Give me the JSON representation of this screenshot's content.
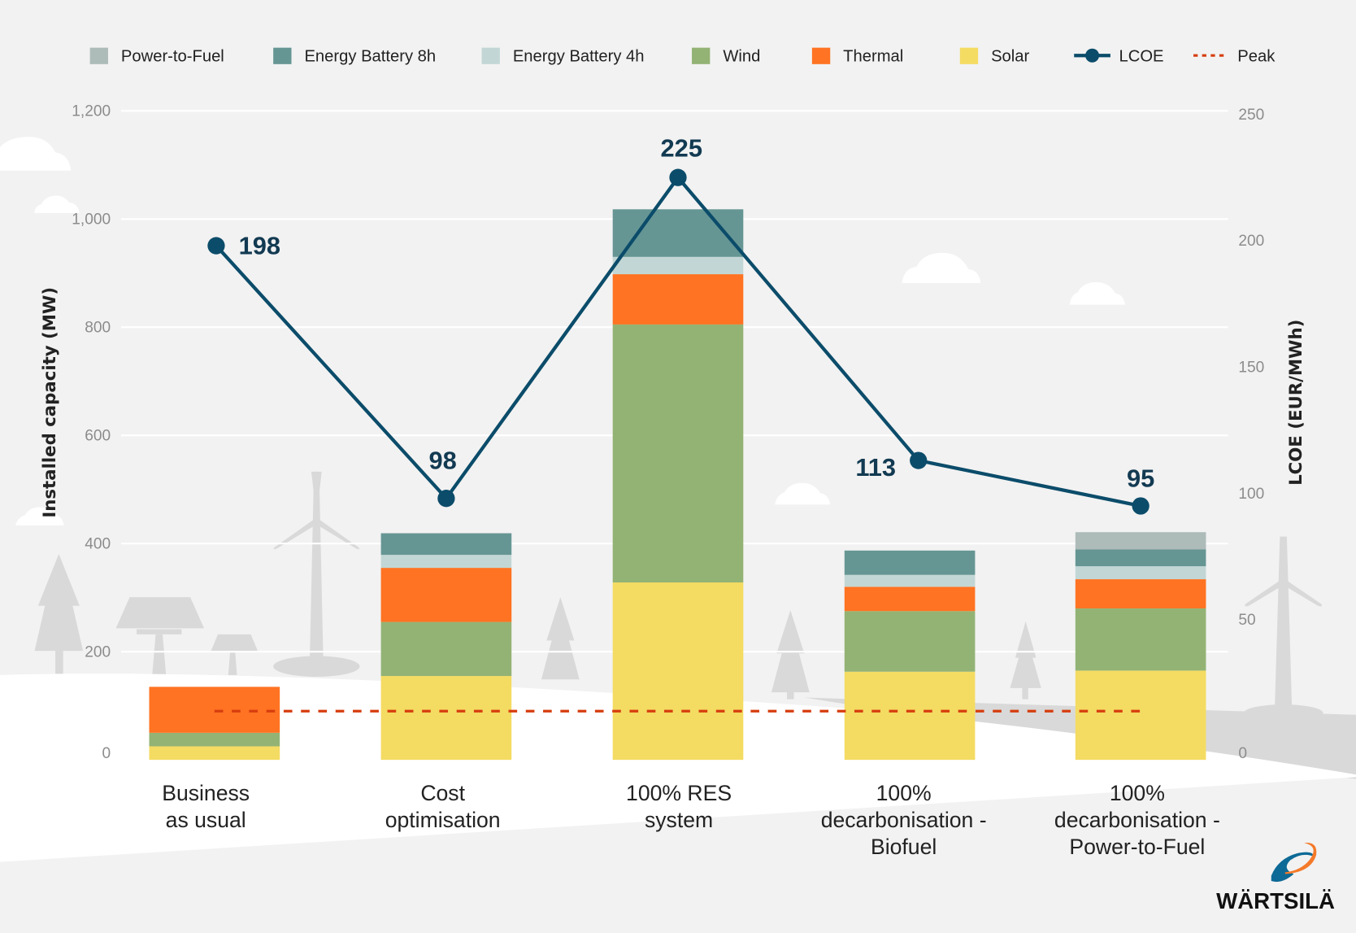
{
  "chart_data": {
    "type": "bar",
    "subtype": "stacked bar with line on secondary axis",
    "categories": [
      [
        "Business",
        "as usual"
      ],
      [
        "Cost",
        "optimisation"
      ],
      [
        "100% RES",
        "system"
      ],
      [
        "100%",
        "decarbonisation -",
        "Biofuel"
      ],
      [
        "100%",
        "decarbonisation -",
        "Power-to-Fuel"
      ]
    ],
    "ylabel": "Installed capacity (MW)",
    "ylim": [
      0,
      1200
    ],
    "yticks": [
      "0",
      "200",
      "400",
      "600",
      "800",
      "1,000",
      "1,200"
    ],
    "ytick_values": [
      0,
      200,
      400,
      600,
      800,
      1000,
      1200
    ],
    "y2label": "LCOE (EUR/MWh)",
    "y2lim": [
      0,
      250
    ],
    "y2ticks": [
      "0",
      "50",
      "100",
      "150",
      "200",
      "250"
    ],
    "y2tick_values": [
      0,
      50,
      100,
      150,
      200,
      250
    ],
    "grid": true,
    "legend_position": "top",
    "series": [
      {
        "name": "Solar",
        "color": "#f4db62",
        "values": [
          25,
          155,
          328,
          163,
          165
        ]
      },
      {
        "name": "Wind",
        "color": "#93b375",
        "values": [
          25,
          100,
          477,
          112,
          115
        ]
      },
      {
        "name": "Thermal",
        "color": "#ff7322",
        "values": [
          85,
          100,
          93,
          45,
          54
        ]
      },
      {
        "name": "Energy Battery 4h",
        "color": "#c2d7d5",
        "values": [
          0,
          24,
          32,
          22,
          24
        ]
      },
      {
        "name": "Energy Battery 8h",
        "color": "#669694",
        "values": [
          0,
          40,
          88,
          45,
          31
        ]
      },
      {
        "name": "Power-to-Fuel",
        "color": "#adbbb9",
        "values": [
          0,
          0,
          0,
          0,
          32
        ]
      }
    ],
    "line_series": {
      "name": "LCOE",
      "color": "#0b4c6a",
      "axis": "right",
      "values": [
        198,
        98,
        225,
        113,
        95
      ],
      "labels": [
        "198",
        "98",
        "225",
        "113",
        "95"
      ]
    },
    "reference_line": {
      "name": "Peak",
      "color": "#d63d0e",
      "style": "dotted",
      "value": 90
    },
    "legend_order": [
      "Power-to-Fuel",
      "Energy Battery 8h",
      "Energy Battery 4h",
      "Wind",
      "Thermal",
      "Solar",
      "LCOE",
      "Peak"
    ]
  },
  "logo": {
    "text": "WÄRTSILÄ",
    "colors": [
      "#0d6a96",
      "#f47a2a"
    ]
  }
}
